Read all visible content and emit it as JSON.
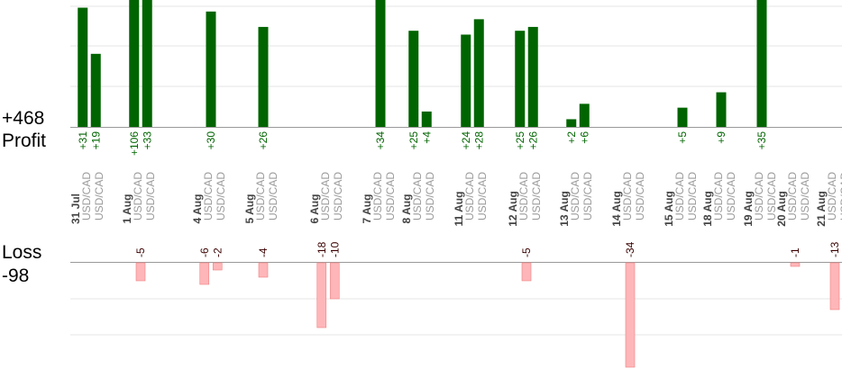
{
  "summary": {
    "profit_total": "+468",
    "profit_label": "Profit",
    "loss_label": "Loss",
    "loss_total": "-98"
  },
  "colors": {
    "profit_bar": "#006400",
    "profit_text": "#006400",
    "loss_bar": "#ffb6b9",
    "loss_bar_edge": "#f08080",
    "loss_text": "#3a0000",
    "pair_text": "#9a9a9a",
    "date_text": "#444444",
    "grid": "#e6e6e6",
    "axis": "#9a9a9a"
  },
  "chart_data": {
    "type": "bar",
    "pair": "USD/CAD",
    "days": [
      {
        "date": "31 Jul",
        "profits": [
          "+31",
          "+19"
        ],
        "losses": []
      },
      {
        "date": "1 Aug",
        "profits": [
          "+106",
          "+33"
        ],
        "losses": [
          "-5"
        ]
      },
      {
        "date": "4 Aug",
        "profits": [
          "+30"
        ],
        "losses": [
          "-6",
          "-2"
        ]
      },
      {
        "date": "5 Aug",
        "profits": [
          "+26"
        ],
        "losses": [
          "-4"
        ]
      },
      {
        "date": "6 Aug",
        "profits": [],
        "losses": [
          "-18",
          "-10"
        ]
      },
      {
        "date": "7 Aug",
        "profits": [
          "+34"
        ],
        "losses": []
      },
      {
        "date": "8 Aug",
        "profits": [
          "+25",
          "+4"
        ],
        "losses": []
      },
      {
        "date": "11 Aug",
        "profits": [
          "+24",
          "+28"
        ],
        "losses": []
      },
      {
        "date": "12 Aug",
        "profits": [
          "+25",
          "+26"
        ],
        "losses": [
          "-5"
        ]
      },
      {
        "date": "13 Aug",
        "profits": [
          "+2",
          "+6"
        ],
        "losses": []
      },
      {
        "date": "14 Aug",
        "profits": [],
        "losses": [
          "-34"
        ]
      },
      {
        "date": "15 Aug",
        "profits": [
          "+5"
        ],
        "losses": []
      },
      {
        "date": "18 Aug",
        "profits": [
          "+9"
        ],
        "losses": []
      },
      {
        "date": "19 Aug",
        "profits": [
          "+35"
        ],
        "losses": []
      },
      {
        "date": "20 Aug",
        "profits": [],
        "losses": [
          "-1"
        ]
      },
      {
        "date": "21 Aug",
        "profits": [],
        "losses": [
          "-13"
        ]
      }
    ],
    "profit_ylim": [
      0,
      33
    ],
    "loss_ylim": [
      0,
      29
    ],
    "grid": true
  }
}
